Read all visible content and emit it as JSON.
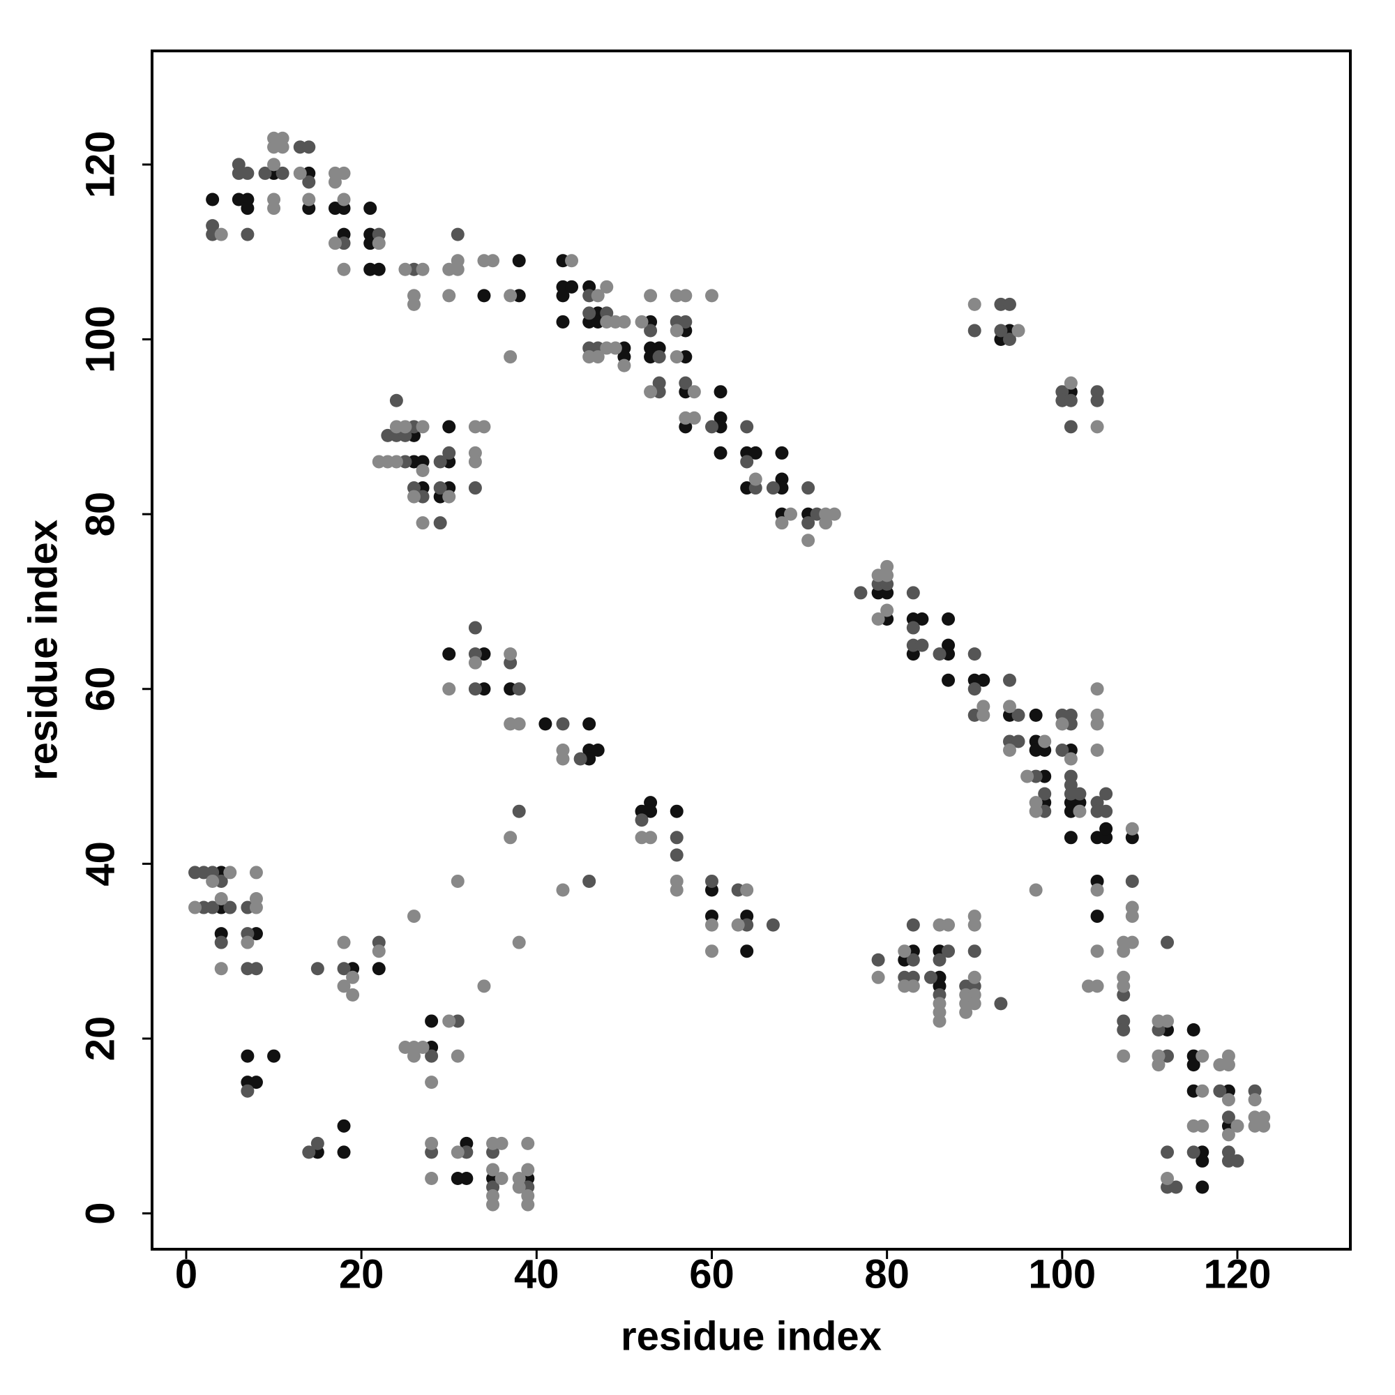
{
  "chart_data": {
    "type": "scatter",
    "xlabel": "residue index",
    "ylabel": "residue index",
    "xlim": [
      -3.9,
      132.9
    ],
    "ylim": [
      -4.1,
      133
    ],
    "xticks": [
      0,
      20,
      40,
      60,
      80,
      100,
      120
    ],
    "yticks": [
      0,
      20,
      40,
      60,
      80,
      100,
      120
    ],
    "series": [
      {
        "color": "#111111",
        "x": [
          3,
          6,
          7,
          7,
          10,
          14,
          14,
          17,
          18,
          18,
          21,
          21,
          21,
          21,
          22,
          34,
          38,
          38,
          43,
          43,
          44,
          43,
          43,
          46,
          47,
          46,
          47,
          50,
          50,
          53,
          53,
          54,
          53,
          57,
          57,
          57,
          57,
          61,
          61,
          61,
          61,
          64,
          65,
          64,
          68,
          68,
          68,
          68,
          71,
          26,
          26,
          27,
          27,
          30,
          30,
          30,
          29,
          30,
          34,
          34,
          37,
          41,
          46,
          46,
          47,
          46,
          52,
          53,
          53,
          56,
          60,
          60,
          64,
          64,
          4,
          4,
          4,
          8,
          7,
          10,
          7,
          8,
          15,
          18,
          18,
          19,
          22,
          28,
          28,
          32,
          31,
          32,
          35,
          39,
          83,
          82,
          86,
          86,
          86,
          94,
          93,
          101,
          79,
          80,
          80,
          83,
          84,
          83,
          87,
          87,
          87,
          87,
          90,
          91,
          94,
          97,
          97,
          97,
          98,
          98,
          98,
          101,
          101,
          102,
          101,
          101,
          104,
          105,
          105,
          104,
          104,
          108,
          112,
          115,
          115,
          115,
          115,
          116,
          116,
          116,
          119,
          119
        ],
        "y": [
          116,
          116,
          116,
          115,
          119,
          119,
          115,
          115,
          115,
          112,
          115,
          112,
          111,
          108,
          108,
          105,
          105,
          109,
          109,
          106,
          106,
          105,
          102,
          106,
          103,
          102,
          102,
          99,
          98,
          102,
          99,
          99,
          98,
          101,
          98,
          94,
          90,
          94,
          91,
          90,
          87,
          87,
          87,
          83,
          87,
          84,
          83,
          80,
          80,
          89,
          86,
          86,
          83,
          86,
          90,
          83,
          82,
          64,
          64,
          60,
          60,
          56,
          56,
          53,
          53,
          52,
          46,
          47,
          46,
          46,
          37,
          34,
          34,
          30,
          39,
          35,
          32,
          32,
          18,
          18,
          15,
          15,
          7,
          10,
          7,
          28,
          28,
          22,
          19,
          8,
          4,
          4,
          4,
          4,
          30,
          29,
          30,
          27,
          26,
          101,
          100,
          94,
          71,
          71,
          68,
          68,
          68,
          64,
          65,
          64,
          68,
          61,
          61,
          61,
          57,
          57,
          54,
          53,
          53,
          50,
          47,
          53,
          47,
          47,
          46,
          43,
          43,
          43,
          44,
          38,
          34,
          43,
          21,
          21,
          18,
          17,
          14,
          7,
          6,
          3,
          14,
          10
        ]
      },
      {
        "color": "#555555",
        "x": [
          3,
          3,
          6,
          6,
          7,
          7,
          9,
          11,
          13,
          14,
          14,
          18,
          22,
          26,
          31,
          46,
          46,
          48,
          46,
          47,
          53,
          54,
          54,
          54,
          56,
          57,
          57,
          60,
          64,
          64,
          65,
          67,
          71,
          72,
          71,
          24,
          23,
          26,
          24,
          25,
          25,
          26,
          27,
          29,
          30,
          29,
          29,
          33,
          33,
          33,
          33,
          37,
          38,
          43,
          45,
          38,
          46,
          52,
          56,
          56,
          60,
          63,
          64,
          67,
          1,
          2,
          3,
          4,
          2,
          3,
          5,
          4,
          7,
          7,
          7,
          8,
          7,
          14,
          15,
          15,
          18,
          22,
          28,
          31,
          28,
          32,
          35,
          35,
          39,
          79,
          83,
          83,
          82,
          83,
          87,
          86,
          85,
          86,
          89,
          90,
          90,
          93,
          90,
          93,
          94,
          93,
          94,
          100,
          100,
          101,
          101,
          104,
          104,
          77,
          79,
          80,
          83,
          83,
          83,
          84,
          86,
          90,
          90,
          90,
          94,
          95,
          94,
          95,
          97,
          98,
          98,
          100,
          101,
          101,
          100,
          101,
          101,
          101,
          102,
          104,
          105,
          104,
          105,
          108,
          107,
          107,
          107,
          111,
          112,
          112,
          115,
          112,
          112,
          113,
          118,
          119,
          119,
          119,
          120,
          122
        ],
        "y": [
          113,
          112,
          120,
          119,
          119,
          112,
          119,
          119,
          122,
          122,
          118,
          111,
          112,
          108,
          112,
          105,
          103,
          103,
          99,
          99,
          101,
          98,
          95,
          94,
          102,
          102,
          95,
          90,
          90,
          86,
          83,
          83,
          83,
          80,
          79,
          93,
          89,
          90,
          89,
          89,
          86,
          83,
          82,
          86,
          87,
          83,
          79,
          83,
          67,
          64,
          60,
          63,
          60,
          56,
          52,
          46,
          38,
          45,
          43,
          41,
          38,
          37,
          33,
          33,
          39,
          39,
          39,
          38,
          35,
          35,
          35,
          31,
          35,
          32,
          28,
          28,
          14,
          7,
          8,
          28,
          28,
          31,
          18,
          22,
          7,
          7,
          7,
          3,
          3,
          29,
          29,
          33,
          27,
          27,
          30,
          29,
          27,
          25,
          26,
          26,
          30,
          24,
          101,
          104,
          104,
          101,
          100,
          94,
          93,
          93,
          90,
          94,
          93,
          71,
          72,
          72,
          71,
          67,
          65,
          65,
          64,
          64,
          60,
          57,
          61,
          57,
          54,
          54,
          50,
          48,
          46,
          57,
          57,
          56,
          53,
          50,
          49,
          48,
          48,
          47,
          48,
          46,
          46,
          38,
          25,
          22,
          21,
          21,
          18,
          31,
          7,
          7,
          3,
          3,
          14,
          11,
          7,
          6,
          6,
          14
        ]
      },
      {
        "color": "#888888",
        "x": [
          4,
          10,
          11,
          10,
          11,
          10,
          10,
          10,
          13,
          14,
          17,
          18,
          17,
          18,
          17,
          18,
          22,
          25,
          26,
          26,
          27,
          30,
          31,
          31,
          30,
          34,
          35,
          37,
          37,
          44,
          48,
          47,
          48,
          49,
          48,
          49,
          46,
          47,
          50,
          50,
          52,
          53,
          53,
          56,
          57,
          56,
          56,
          58,
          57,
          58,
          60,
          65,
          69,
          68,
          73,
          74,
          73,
          71,
          24,
          25,
          27,
          22,
          23,
          24,
          27,
          26,
          27,
          30,
          33,
          34,
          33,
          33,
          30,
          33,
          37,
          37,
          38,
          43,
          43,
          37,
          31,
          43,
          52,
          53,
          56,
          56,
          60,
          60,
          64,
          63,
          5,
          3,
          1,
          4,
          4,
          8,
          8,
          8,
          7,
          18,
          18,
          19,
          19,
          22,
          26,
          25,
          26,
          27,
          26,
          28,
          30,
          31,
          34,
          28,
          28,
          31,
          35,
          36,
          35,
          36,
          35,
          35,
          38,
          39,
          38,
          39,
          39,
          39,
          38,
          79,
          82,
          82,
          83,
          86,
          87,
          86,
          86,
          86,
          89,
          90,
          89,
          90,
          89,
          90,
          90,
          90,
          90,
          95,
          101,
          104,
          79,
          80,
          80,
          80,
          79,
          91,
          91,
          94,
          94,
          96,
          98,
          97,
          97,
          97,
          100,
          101,
          102,
          104,
          104,
          104,
          104,
          104,
          104,
          103,
          104,
          108,
          108,
          108,
          107,
          108,
          107,
          107,
          107,
          107,
          111,
          112,
          111,
          111,
          116,
          116,
          115,
          116,
          112,
          118,
          119,
          119,
          119,
          120,
          119,
          122,
          122,
          123,
          122,
          123
        ],
        "y": [
          112,
          123,
          123,
          122,
          122,
          120,
          116,
          115,
          119,
          116,
          119,
          119,
          118,
          116,
          111,
          108,
          111,
          108,
          105,
          104,
          108,
          108,
          108,
          109,
          105,
          109,
          109,
          105,
          98,
          109,
          106,
          105,
          102,
          102,
          99,
          99,
          98,
          98,
          102,
          97,
          102,
          105,
          94,
          105,
          105,
          101,
          98,
          94,
          91,
          91,
          105,
          84,
          80,
          79,
          80,
          80,
          79,
          77,
          90,
          90,
          90,
          86,
          86,
          86,
          85,
          82,
          79,
          82,
          90,
          90,
          87,
          86,
          60,
          63,
          64,
          56,
          56,
          53,
          52,
          43,
          38,
          37,
          43,
          43,
          38,
          37,
          33,
          30,
          37,
          33,
          39,
          38,
          35,
          36,
          28,
          35,
          39,
          36,
          31,
          31,
          26,
          27,
          25,
          30,
          34,
          19,
          19,
          19,
          18,
          15,
          22,
          18,
          26,
          8,
          4,
          7,
          8,
          8,
          5,
          4,
          2,
          1,
          4,
          5,
          3,
          2,
          1,
          8,
          31,
          27,
          30,
          26,
          26,
          33,
          33,
          24,
          23,
          22,
          25,
          25,
          24,
          24,
          23,
          27,
          33,
          34,
          104,
          101,
          95,
          90,
          73,
          74,
          73,
          69,
          68,
          58,
          57,
          58,
          53,
          50,
          54,
          47,
          46,
          37,
          56,
          52,
          46,
          60,
          57,
          56,
          53,
          37,
          30,
          26,
          26,
          44,
          35,
          34,
          31,
          31,
          30,
          27,
          26,
          18,
          22,
          22,
          18,
          17,
          18,
          14,
          10,
          10,
          4,
          17,
          18,
          17,
          13,
          10,
          9,
          13,
          11,
          11,
          10,
          10
        ]
      }
    ]
  }
}
